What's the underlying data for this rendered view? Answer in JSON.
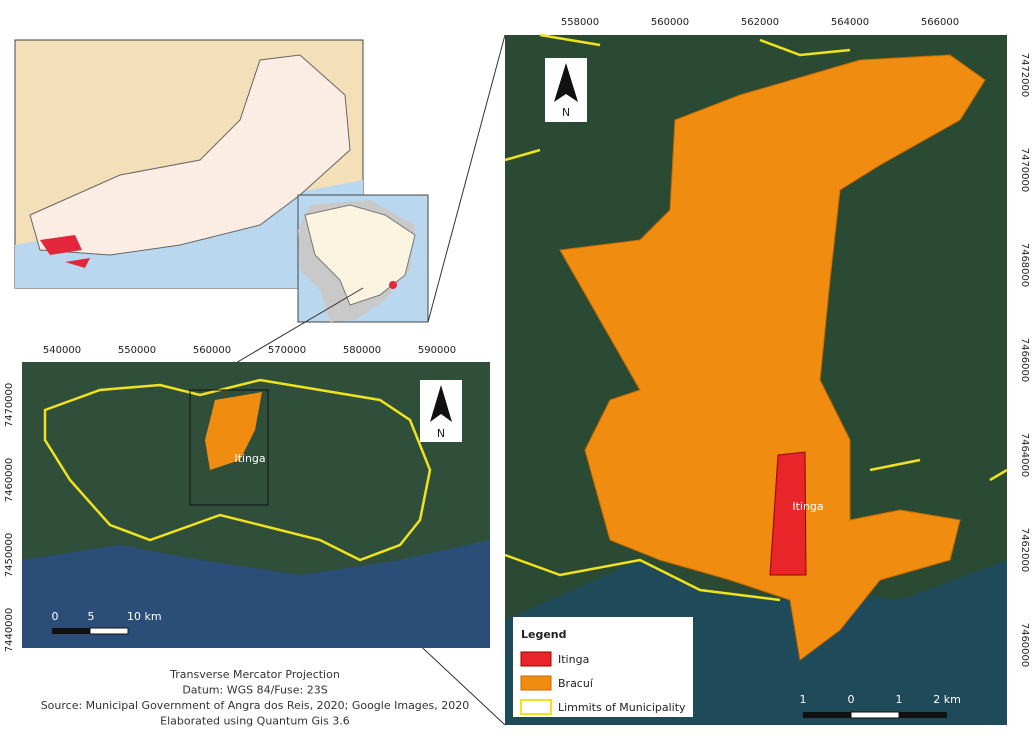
{
  "overview_map": {
    "x_labels": [
      540000,
      550000,
      560000,
      570000,
      580000,
      590000
    ],
    "y_labels": [
      7470000,
      7460000,
      7450000,
      7440000
    ],
    "north": "N",
    "place_label": "Itinga",
    "scale": [
      "0",
      "5",
      "10 km"
    ]
  },
  "detail_map": {
    "x_labels": [
      558000,
      560000,
      562000,
      564000,
      566000
    ],
    "y_labels": [
      7472000,
      7470000,
      7468000,
      7466000,
      7464000,
      7462000,
      7460000
    ],
    "north": "N",
    "place_label": "Itinga",
    "scale": [
      "1",
      "0",
      "1",
      "2 km"
    ],
    "legend": {
      "title": "Legend",
      "items": [
        "Itinga",
        "Bracuí",
        "Limmits of Municipality"
      ]
    }
  },
  "credits": [
    "Transverse Mercator Projection",
    "Datum: WGS 84/Fuse: 23S",
    "Source: Municipal Government of Angra dos Reis, 2020; Google Images, 2020",
    "Elaborated using Quantum Gis 3.6"
  ]
}
